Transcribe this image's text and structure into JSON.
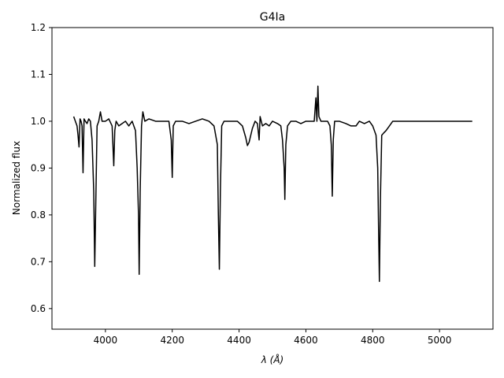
{
  "chart_data": {
    "type": "line",
    "title": "G4Ia",
    "xlabel": "λ (Å)",
    "ylabel": "Normalized flux",
    "xlim": [
      3840,
      5160
    ],
    "ylim": [
      0.556,
      1.2
    ],
    "xticks": [
      4000,
      4200,
      4400,
      4600,
      4800,
      5000
    ],
    "yticks": [
      0.6,
      0.7,
      0.8,
      0.9,
      1.0,
      1.1,
      1.2
    ],
    "grid": false,
    "legend": "none",
    "line_color": "#000000",
    "series": [
      {
        "name": "",
        "points": [
          [
            3905,
            1.01
          ],
          [
            3910,
            1.0
          ],
          [
            3915,
            0.99
          ],
          [
            3918,
            0.97
          ],
          [
            3921,
            0.945
          ],
          [
            3924,
            1.005
          ],
          [
            3927,
            1.0
          ],
          [
            3930,
            0.99
          ],
          [
            3933,
            0.89
          ],
          [
            3936,
            1.005
          ],
          [
            3940,
            1.0
          ],
          [
            3945,
            0.995
          ],
          [
            3950,
            1.005
          ],
          [
            3955,
            1.0
          ],
          [
            3960,
            0.96
          ],
          [
            3965,
            0.85
          ],
          [
            3968,
            0.69
          ],
          [
            3971,
            0.82
          ],
          [
            3975,
            0.99
          ],
          [
            3980,
            1.0
          ],
          [
            3985,
            1.02
          ],
          [
            3990,
            1.0
          ],
          [
            4000,
            1.0
          ],
          [
            4010,
            1.005
          ],
          [
            4020,
            0.99
          ],
          [
            4025,
            0.905
          ],
          [
            4028,
            0.98
          ],
          [
            4032,
            1.0
          ],
          [
            4040,
            0.99
          ],
          [
            4050,
            0.995
          ],
          [
            4060,
            1.0
          ],
          [
            4070,
            0.99
          ],
          [
            4080,
            1.0
          ],
          [
            4090,
            0.98
          ],
          [
            4095,
            0.9
          ],
          [
            4099,
            0.8
          ],
          [
            4101,
            0.673
          ],
          [
            4104,
            0.85
          ],
          [
            4108,
            0.99
          ],
          [
            4112,
            1.02
          ],
          [
            4118,
            1.0
          ],
          [
            4130,
            1.005
          ],
          [
            4150,
            1.0
          ],
          [
            4170,
            1.0
          ],
          [
            4190,
            1.0
          ],
          [
            4197,
            0.96
          ],
          [
            4200,
            0.88
          ],
          [
            4203,
            0.99
          ],
          [
            4210,
            1.0
          ],
          [
            4230,
            1.0
          ],
          [
            4250,
            0.995
          ],
          [
            4270,
            1.0
          ],
          [
            4290,
            1.005
          ],
          [
            4310,
            1.0
          ],
          [
            4325,
            0.99
          ],
          [
            4335,
            0.95
          ],
          [
            4338,
            0.8
          ],
          [
            4341,
            0.684
          ],
          [
            4344,
            0.85
          ],
          [
            4348,
            0.99
          ],
          [
            4355,
            1.0
          ],
          [
            4375,
            1.0
          ],
          [
            4395,
            1.0
          ],
          [
            4410,
            0.99
          ],
          [
            4420,
            0.965
          ],
          [
            4425,
            0.948
          ],
          [
            4430,
            0.955
          ],
          [
            4440,
            0.985
          ],
          [
            4448,
            1.0
          ],
          [
            4455,
            0.995
          ],
          [
            4460,
            0.96
          ],
          [
            4463,
            1.01
          ],
          [
            4470,
            0.99
          ],
          [
            4480,
            0.995
          ],
          [
            4490,
            0.99
          ],
          [
            4500,
            1.0
          ],
          [
            4515,
            0.995
          ],
          [
            4525,
            0.99
          ],
          [
            4530,
            0.96
          ],
          [
            4535,
            0.9
          ],
          [
            4537,
            0.833
          ],
          [
            4540,
            0.95
          ],
          [
            4545,
            0.99
          ],
          [
            4555,
            1.0
          ],
          [
            4570,
            1.0
          ],
          [
            4585,
            0.995
          ],
          [
            4600,
            1.0
          ],
          [
            4615,
            1.0
          ],
          [
            4625,
            1.0
          ],
          [
            4630,
            1.05
          ],
          [
            4633,
            1.0
          ],
          [
            4636,
            1.075
          ],
          [
            4639,
            1.01
          ],
          [
            4645,
            1.0
          ],
          [
            4655,
            1.0
          ],
          [
            4665,
            1.0
          ],
          [
            4672,
            0.99
          ],
          [
            4676,
            0.95
          ],
          [
            4679,
            0.84
          ],
          [
            4682,
            0.96
          ],
          [
            4686,
            1.0
          ],
          [
            4700,
            1.0
          ],
          [
            4720,
            0.995
          ],
          [
            4735,
            0.99
          ],
          [
            4750,
            0.99
          ],
          [
            4760,
            1.0
          ],
          [
            4775,
            0.995
          ],
          [
            4790,
            1.0
          ],
          [
            4800,
            0.99
          ],
          [
            4810,
            0.97
          ],
          [
            4815,
            0.9
          ],
          [
            4818,
            0.75
          ],
          [
            4820,
            0.658
          ],
          [
            4823,
            0.83
          ],
          [
            4827,
            0.97
          ],
          [
            4833,
            0.975
          ],
          [
            4840,
            0.98
          ],
          [
            4850,
            0.99
          ],
          [
            4860,
            1.0
          ],
          [
            4880,
            1.0
          ],
          [
            4900,
            1.0
          ],
          [
            4920,
            1.0
          ],
          [
            4940,
            1.0
          ],
          [
            4960,
            1.0
          ],
          [
            4980,
            1.0
          ],
          [
            5000,
            1.0
          ],
          [
            5020,
            1.0
          ],
          [
            5040,
            1.0
          ],
          [
            5060,
            1.0
          ],
          [
            5080,
            1.0
          ],
          [
            5098,
            1.0
          ]
        ]
      }
    ]
  }
}
